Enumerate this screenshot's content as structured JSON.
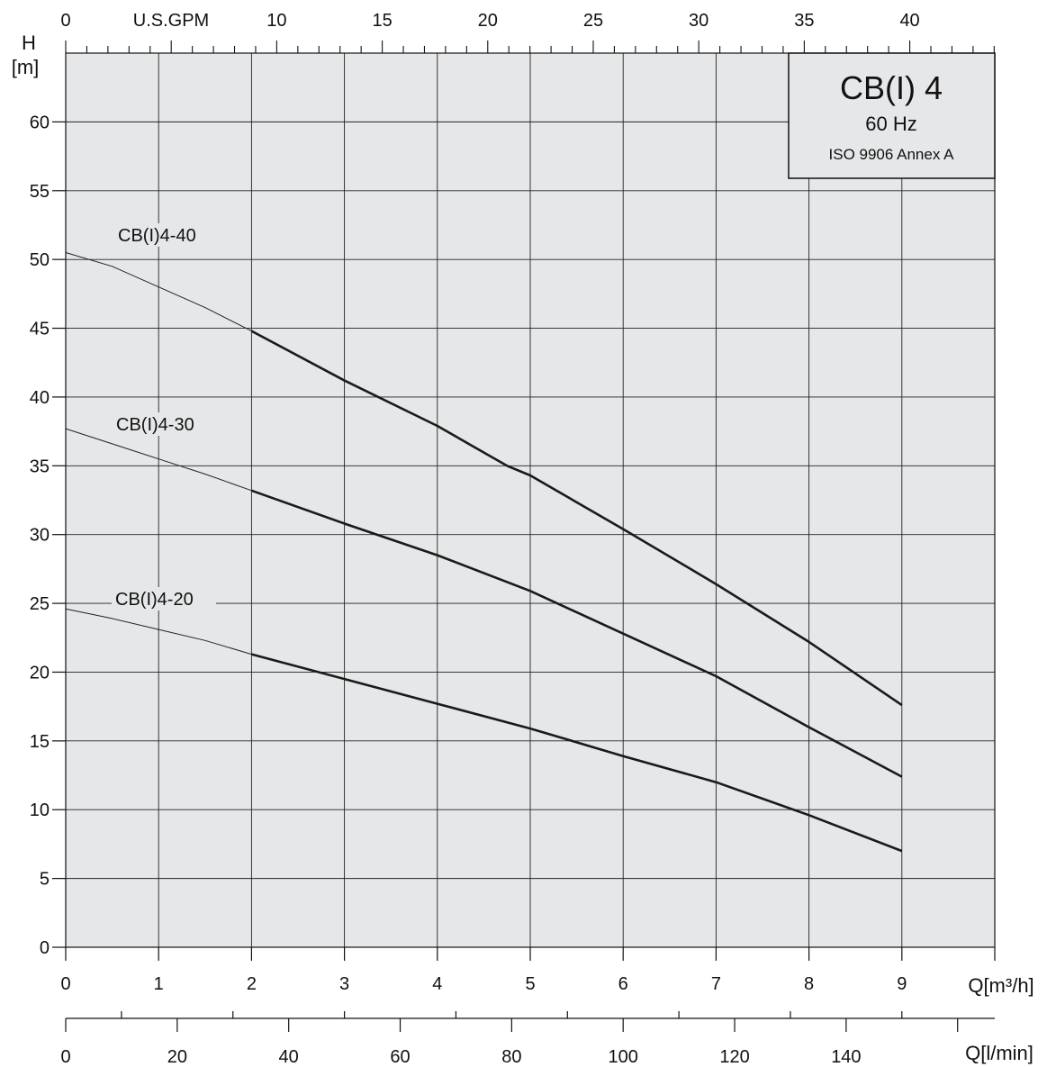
{
  "chart_data": {
    "type": "line",
    "title": "CB(I) 4",
    "subtitle": "60 Hz",
    "note": "ISO 9906 Annex A",
    "ylabel_top": "H",
    "ylabel_unit": "[m]",
    "xlabel": "Q[m³/h]",
    "xlabel_lmin": "Q[l/min]",
    "xlabel_gpm": "U.S.GPM",
    "xlim": [
      0,
      10
    ],
    "ylim": [
      0,
      65
    ],
    "grid": true,
    "x_ticks": [
      "0",
      "1",
      "2",
      "3",
      "4",
      "5",
      "6",
      "7",
      "8",
      "9"
    ],
    "y_ticks": [
      "0",
      "5",
      "10",
      "15",
      "20",
      "25",
      "30",
      "35",
      "40",
      "45",
      "50",
      "55",
      "60"
    ],
    "gpm_ticks": [
      "0",
      "10",
      "15",
      "20",
      "25",
      "30",
      "35",
      "40"
    ],
    "lmin_ticks": [
      "0",
      "20",
      "40",
      "60",
      "80",
      "100",
      "120",
      "140"
    ],
    "series": [
      {
        "name": "CB(I)4-40",
        "x": [
          0,
          0.5,
          1,
          1.5,
          2,
          3,
          4,
          4.75,
          5,
          6,
          7,
          8,
          9
        ],
        "y": [
          50.5,
          49.5,
          48,
          46.5,
          44.8,
          41.2,
          37.9,
          35.0,
          34.3,
          30.4,
          26.4,
          22.2,
          17.6
        ],
        "dashed_before_x": 2
      },
      {
        "name": "CB(I)4-30",
        "x": [
          0,
          0.5,
          1,
          1.5,
          2,
          3,
          4,
          5,
          6,
          7,
          8,
          9
        ],
        "y": [
          37.7,
          36.6,
          35.5,
          34.4,
          33.2,
          30.8,
          28.5,
          25.9,
          22.8,
          19.7,
          16.0,
          12.4
        ],
        "dashed_before_x": 2
      },
      {
        "name": "CB(I)4-20",
        "x": [
          0,
          0.5,
          1,
          1.5,
          2,
          3,
          4,
          5,
          6,
          7,
          8,
          9
        ],
        "y": [
          24.6,
          23.9,
          23.1,
          22.3,
          21.3,
          19.5,
          17.7,
          15.9,
          13.9,
          12.0,
          9.6,
          7.0
        ],
        "dashed_before_x": 2
      }
    ]
  }
}
